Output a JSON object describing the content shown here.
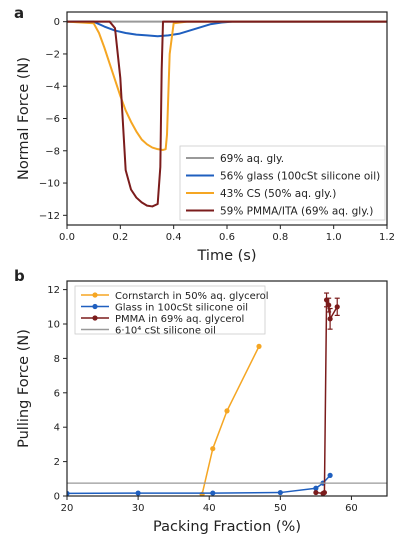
{
  "chart_data": [
    {
      "panel": "a",
      "type": "line",
      "title": "",
      "xlabel": "Time (s)",
      "ylabel": "Normal Force (N)",
      "xlim": [
        0.0,
        1.2
      ],
      "ylim": [
        -12.6,
        0.6
      ],
      "xticks": [
        0.0,
        0.2,
        0.4,
        0.6,
        0.8,
        1.0,
        1.2
      ],
      "xtick_labels": [
        "0.0",
        "0.2",
        "0.4",
        "0.6",
        "0.8",
        "1.0",
        "1.2"
      ],
      "yticks": [
        0,
        -2,
        -4,
        -6,
        -8,
        -10,
        -12
      ],
      "ytick_labels": [
        "0",
        "−2",
        "−4",
        "−6",
        "−8",
        "−10",
        "−12"
      ],
      "grid": false,
      "legend_position": "lower-right",
      "series": [
        {
          "name": "69% aq. gly.",
          "color": "#999999",
          "x": [
            0.0,
            0.4,
            0.8,
            1.2
          ],
          "y": [
            0.0,
            0.0,
            0.0,
            0.0
          ]
        },
        {
          "name": "56% glass (100cSt silicone oil)",
          "color": "#1f5fbf",
          "x": [
            0.0,
            0.1,
            0.14,
            0.18,
            0.22,
            0.26,
            0.3,
            0.34,
            0.38,
            0.42,
            0.46,
            0.5,
            0.54,
            0.58,
            0.62,
            0.7,
            0.8,
            1.0,
            1.2
          ],
          "y": [
            0.0,
            0.0,
            -0.3,
            -0.55,
            -0.7,
            -0.8,
            -0.85,
            -0.9,
            -0.85,
            -0.75,
            -0.55,
            -0.35,
            -0.15,
            -0.05,
            0.0,
            0.0,
            0.0,
            0.0,
            0.0
          ]
        },
        {
          "name": "43% CS (50% aq. gly.)",
          "color": "#f5a623",
          "x": [
            0.0,
            0.1,
            0.12,
            0.14,
            0.16,
            0.18,
            0.2,
            0.22,
            0.24,
            0.26,
            0.28,
            0.3,
            0.32,
            0.34,
            0.36,
            0.37,
            0.375,
            0.385,
            0.4,
            0.45,
            0.5,
            0.6,
            0.8,
            1.0,
            1.2
          ],
          "y": [
            0.0,
            -0.1,
            -0.7,
            -1.6,
            -2.6,
            -3.6,
            -4.6,
            -5.5,
            -6.2,
            -6.8,
            -7.3,
            -7.6,
            -7.8,
            -7.9,
            -7.95,
            -7.9,
            -7.0,
            -2.0,
            -0.1,
            0.0,
            0.0,
            0.0,
            0.0,
            0.0,
            0.0
          ]
        },
        {
          "name": "59% PMMA/ITA (69% aq. gly.)",
          "color": "#7b1c1c",
          "x": [
            0.0,
            0.16,
            0.18,
            0.2,
            0.22,
            0.24,
            0.26,
            0.28,
            0.3,
            0.32,
            0.34,
            0.35,
            0.355,
            0.36,
            0.38,
            0.5,
            0.8,
            1.0,
            1.2
          ],
          "y": [
            0.0,
            0.0,
            -0.4,
            -3.5,
            -9.2,
            -10.4,
            -10.9,
            -11.2,
            -11.4,
            -11.45,
            -11.3,
            -9.0,
            -3.0,
            0.0,
            0.0,
            0.0,
            0.0,
            0.0,
            0.0
          ]
        }
      ]
    },
    {
      "panel": "b",
      "type": "scatter",
      "title": "",
      "xlabel": "Packing Fraction (%)",
      "ylabel": "Pulling Force (N)",
      "xlim": [
        20,
        65
      ],
      "ylim": [
        0,
        12.5
      ],
      "xticks": [
        20,
        30,
        40,
        50,
        60
      ],
      "xtick_labels": [
        "20",
        "30",
        "40",
        "50",
        "60"
      ],
      "yticks": [
        0,
        2,
        4,
        6,
        8,
        10,
        12
      ],
      "ytick_labels": [
        "0",
        "2",
        "4",
        "6",
        "8",
        "10",
        "12"
      ],
      "grid": false,
      "legend_position": "upper-left",
      "series": [
        {
          "name": "Cornstarch in 50% aq. glycerol",
          "color": "#f5a623",
          "x": [
            39.0,
            40.5,
            42.5,
            47.0
          ],
          "y": [
            0.1,
            2.75,
            4.95,
            8.7
          ]
        },
        {
          "name": "Glass in 100cSt silicone oil",
          "color": "#1f5fbf",
          "x": [
            20.0,
            30.0,
            40.5,
            50.0,
            55.0,
            56.0,
            57.0
          ],
          "y": [
            0.15,
            0.17,
            0.17,
            0.2,
            0.45,
            0.75,
            1.2
          ]
        },
        {
          "name": "PMMA in 69% aq. glycerol",
          "color": "#7b1c1c",
          "x": [
            55.0,
            56.0,
            56.2,
            56.5,
            56.8,
            57.0,
            58.0
          ],
          "y": [
            0.2,
            0.15,
            0.2,
            11.4,
            11.1,
            10.3,
            11.0
          ],
          "y_err": [
            0,
            0,
            0,
            0.4,
            0.4,
            0.6,
            0.5
          ]
        },
        {
          "name": "6·10⁴ cSt silicone oil",
          "color": "#999999",
          "type": "hline",
          "y": 0.75
        }
      ]
    }
  ]
}
